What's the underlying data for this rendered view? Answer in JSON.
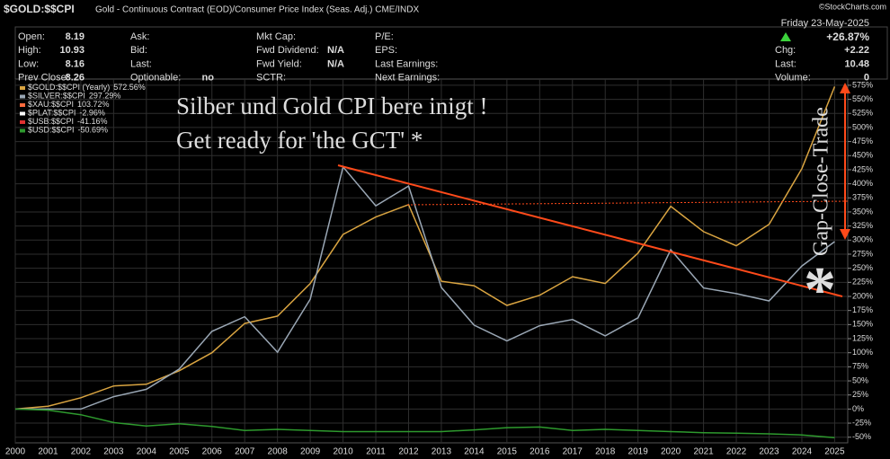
{
  "header": {
    "symbol": "$GOLD:$$CPI",
    "description": "Gold - Continuous Contract (EOD)/Consumer Price Index (Seas. Adj.)  CME/INDX",
    "credit": "©StockCharts.com"
  },
  "info": {
    "date": "Friday  23-May-2025",
    "change": "+26.87%",
    "columns": [
      [
        {
          "label": "Open:",
          "value": "8.19"
        },
        {
          "label": "High:",
          "value": "10.93"
        },
        {
          "label": "Low:",
          "value": "8.16"
        },
        {
          "label": "Prev Close:",
          "value": "8.26"
        }
      ],
      [
        {
          "label": "Ask:"
        },
        {
          "label": "Bid:"
        },
        {
          "label": "Last:"
        },
        {
          "label": "Optionable:",
          "value": "no"
        }
      ],
      [
        {
          "label": "Mkt Cap:"
        },
        {
          "label": "Fwd Dividend:",
          "value": "N/A"
        },
        {
          "label": "Fwd Yield:",
          "value": "N/A"
        },
        {
          "label": "SCTR:"
        }
      ],
      [
        {
          "label": "P/E:"
        },
        {
          "label": "EPS:"
        },
        {
          "label": "Last Earnings:"
        },
        {
          "label": "Next Earnings:"
        }
      ],
      [
        {
          "label": "Chg:",
          "value": "+2.22"
        },
        {
          "label": "Last:",
          "value": "10.48"
        },
        {
          "label": "Volume:",
          "value": "0"
        }
      ]
    ]
  },
  "chart_data": {
    "type": "line",
    "annotations": [
      "Silber und Gold CPI bere inigt !",
      "Get ready for 'the GCT' *",
      "Gap-Close-Trade",
      "*"
    ],
    "x": [
      2000,
      2001,
      2002,
      2003,
      2004,
      2005,
      2006,
      2007,
      2008,
      2009,
      2010,
      2011,
      2012,
      2013,
      2014,
      2015,
      2016,
      2017,
      2018,
      2019,
      2020,
      2021,
      2022,
      2023,
      2024,
      2025
    ],
    "xlim": [
      2000,
      2025.4
    ],
    "xticks": [
      2000,
      2001,
      2002,
      2003,
      2004,
      2005,
      2006,
      2007,
      2008,
      2009,
      2010,
      2011,
      2012,
      2013,
      2014,
      2015,
      2016,
      2017,
      2018,
      2019,
      2020,
      2021,
      2022,
      2023,
      2024,
      2025
    ],
    "ylim": [
      -60,
      586
    ],
    "yticks": [
      {
        "value": -50,
        "label": "-50%"
      },
      {
        "value": -25,
        "label": "-25%"
      },
      {
        "value": 0,
        "label": "0%"
      },
      {
        "value": 25,
        "label": "25%"
      },
      {
        "value": 50,
        "label": "50%"
      },
      {
        "value": 75,
        "label": "75%"
      },
      {
        "value": 100,
        "label": "100%"
      },
      {
        "value": 125,
        "label": "125%"
      },
      {
        "value": 150,
        "label": "150%"
      },
      {
        "value": 175,
        "label": "175%"
      },
      {
        "value": 200,
        "label": "200%"
      },
      {
        "value": 225,
        "label": "225%"
      },
      {
        "value": 250,
        "label": "250%"
      },
      {
        "value": 275,
        "label": "275%"
      },
      {
        "value": 300,
        "label": "300%"
      },
      {
        "value": 325,
        "label": "325%"
      },
      {
        "value": 350,
        "label": "350%"
      },
      {
        "value": 375,
        "label": "375%"
      },
      {
        "value": 400,
        "label": "400%"
      },
      {
        "value": 425,
        "label": "425%"
      },
      {
        "value": 450,
        "label": "450%"
      },
      {
        "value": 475,
        "label": "475%"
      },
      {
        "value": 500,
        "label": "500%"
      },
      {
        "value": 525,
        "label": "525%"
      },
      {
        "value": 550,
        "label": "550%"
      },
      {
        "value": 575,
        "label": "575%"
      }
    ],
    "grid": true,
    "series": [
      {
        "name": "$GOLD:$$CPI (Yearly)",
        "last": 572.56,
        "last_label": "572.56%",
        "color": "#d9a441",
        "values": [
          0,
          5,
          20,
          41,
          44,
          68,
          100,
          152,
          165,
          223,
          310,
          341,
          363,
          227,
          219,
          184,
          202,
          235,
          223,
          277,
          360,
          315,
          290,
          328,
          427,
          572.56
        ]
      },
      {
        "name": "$SILVER:$$CPI",
        "last": 297.29,
        "last_label": "297.29%",
        "color": "#9aa7b5",
        "values": [
          0,
          0,
          0,
          22,
          35,
          71,
          138,
          164,
          101,
          195,
          430,
          361,
          396,
          216,
          149,
          121,
          148,
          159,
          130,
          162,
          283,
          215,
          205,
          192,
          254,
          297.29
        ]
      },
      {
        "name": "$XAU:$$CPI",
        "last": 103.72,
        "last_label": "103.72%",
        "color": "#ff6a3d"
      },
      {
        "name": "$PLAT:$$CPI",
        "last": -2.96,
        "last_label": "-2.96%",
        "color": "#ffffff"
      },
      {
        "name": "$USB:$$CPI",
        "last": -41.16,
        "last_label": "-41.16%",
        "color": "#e03030"
      },
      {
        "name": "$USD:$$CPI",
        "last": -50.69,
        "last_label": "-50.69%",
        "color": "#2e9a2e",
        "values": [
          0,
          -2,
          -10,
          -24,
          -30,
          -26,
          -31,
          -38,
          -36,
          -38,
          -40,
          -40,
          -40,
          -40,
          -37,
          -33,
          -32,
          -38,
          -36,
          -38,
          -40,
          -42,
          -43,
          -44,
          -46,
          -50.69
        ]
      }
    ]
  }
}
